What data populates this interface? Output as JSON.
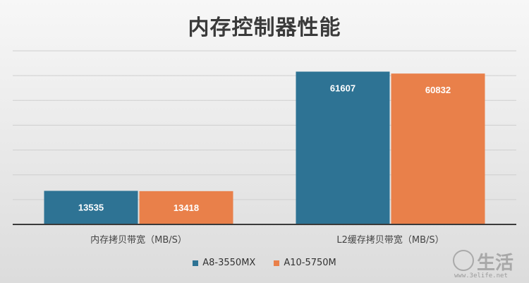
{
  "chart_data": {
    "type": "bar",
    "title": "内存控制器性能",
    "categories": [
      "内存拷贝带宽（MB/S）",
      "L2缓存拷贝带宽（MB/S）"
    ],
    "series": [
      {
        "name": "A8-3550MX",
        "color": "#2e7394",
        "values": [
          13535,
          61607
        ]
      },
      {
        "name": "A10-5750M",
        "color": "#e9804a",
        "values": [
          13418,
          60832
        ]
      }
    ],
    "ylim": [
      0,
      70000
    ],
    "grid": true,
    "legend_position": "bottom"
  },
  "watermark": {
    "name": "生活",
    "url": "www.3elife.net"
  }
}
